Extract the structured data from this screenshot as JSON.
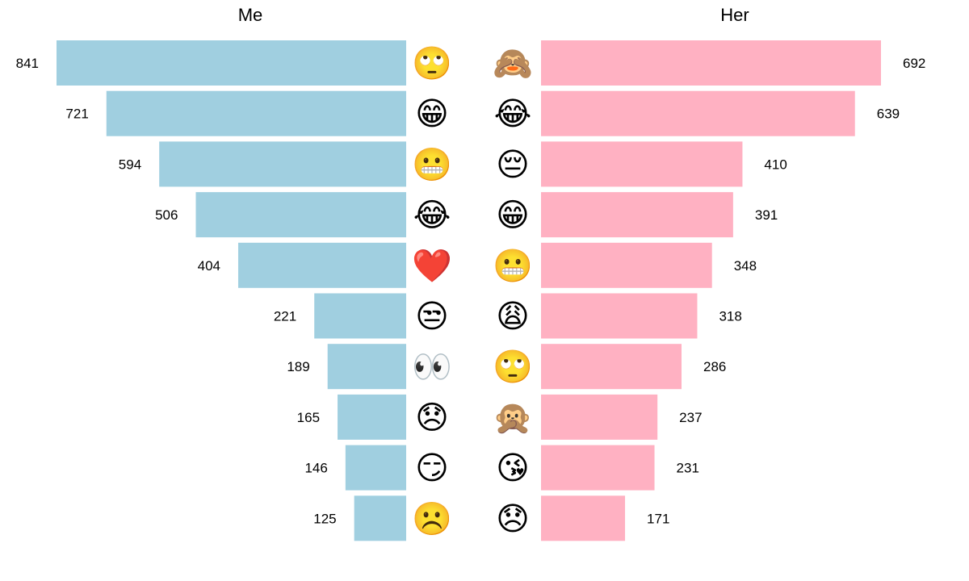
{
  "colors": {
    "me": "#a0cfe0",
    "her": "#ffb1c2"
  },
  "chart_data": [
    {
      "type": "bar",
      "title": "Me",
      "orientation": "horizontal",
      "direction": "right-to-left",
      "categories": [
        "face with rolling eyes",
        "grinning face with smiling eyes",
        "grimacing face",
        "face with tears of joy",
        "red heart",
        "unamused face",
        "eyes",
        "disappointed face",
        "smirking face",
        "frowning face"
      ],
      "icons": [
        "🙄",
        "😁",
        "😬",
        "😂",
        "❤️",
        "😒",
        "👀",
        "😞",
        "😏",
        "☹️"
      ],
      "values": [
        841,
        721,
        594,
        506,
        404,
        221,
        189,
        165,
        146,
        125
      ],
      "labels": [
        "841",
        "721",
        "594",
        "506",
        "404",
        "221",
        "189",
        "165",
        "146",
        "125"
      ],
      "xlim": [
        0,
        841
      ],
      "grid": false
    },
    {
      "type": "bar",
      "title": "Her",
      "orientation": "horizontal",
      "direction": "left-to-right",
      "categories": [
        "see-no-evil monkey",
        "face with tears of joy",
        "pensive face",
        "grinning face with smiling eyes",
        "grimacing face",
        "weary face",
        "face with rolling eyes",
        "speak-no-evil monkey",
        "face blowing a kiss",
        "disappointed face"
      ],
      "icons": [
        "🙈",
        "😂",
        "😔",
        "😁",
        "😬",
        "😩",
        "🙄",
        "🙊",
        "😘",
        "😞"
      ],
      "values": [
        692,
        639,
        410,
        391,
        348,
        318,
        286,
        237,
        231,
        171
      ],
      "labels": [
        "692",
        "639",
        "410",
        "391",
        "348",
        "318",
        "286",
        "237",
        "231",
        "171"
      ],
      "xlim": [
        0,
        692
      ],
      "grid": false
    }
  ]
}
